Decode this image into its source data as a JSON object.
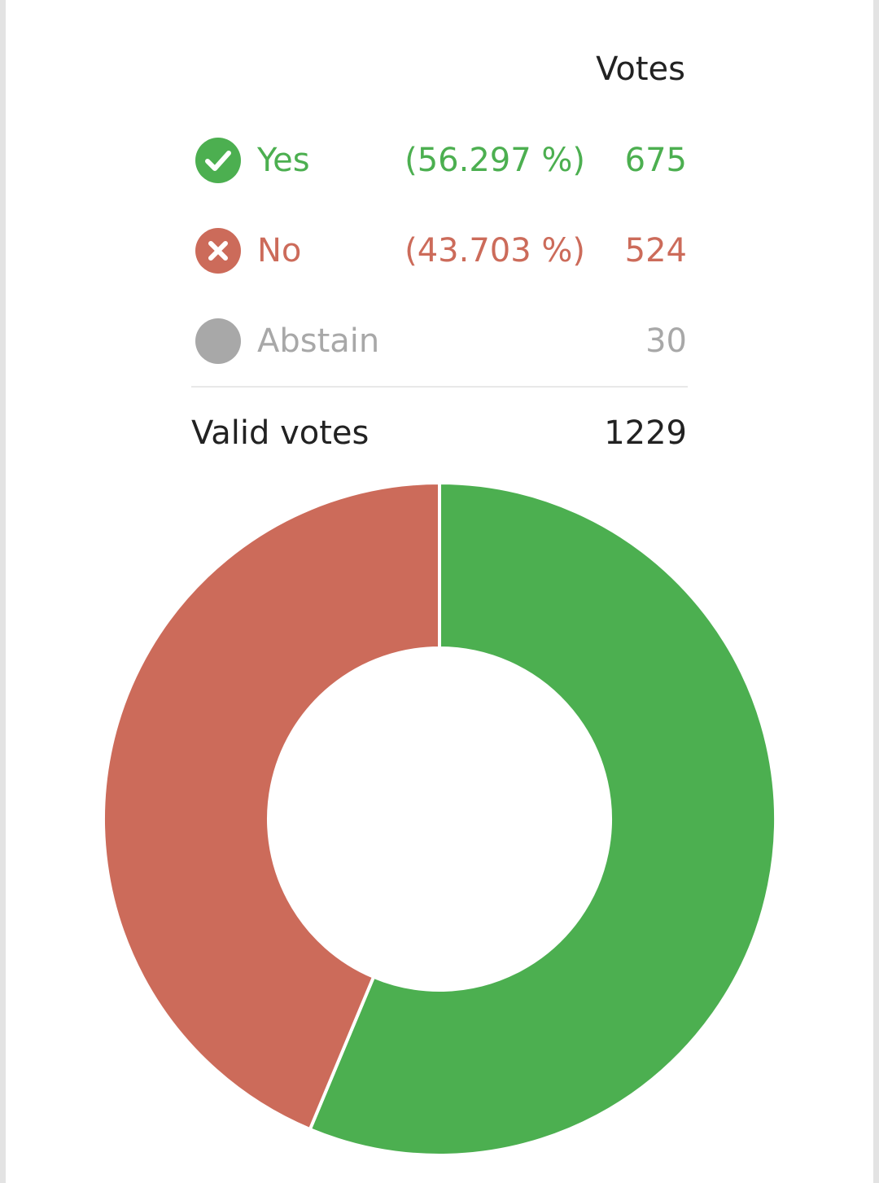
{
  "header": {
    "votes_label": "Votes"
  },
  "rows": [
    {
      "label": "Yes",
      "percent": "(56.297 %)",
      "count": "675",
      "color": "#4caf50",
      "icon": "check-icon"
    },
    {
      "label": "No",
      "percent": "(43.703 %)",
      "count": "524",
      "color": "#cc6b5a",
      "icon": "close-icon"
    },
    {
      "label": "Abstain",
      "percent": "",
      "count": "30",
      "color": "#a8a8a8",
      "icon": "circle-icon"
    }
  ],
  "summary": {
    "valid_label": "Valid votes",
    "valid_count": "1229"
  },
  "chart_data": {
    "type": "pie",
    "style": "donut",
    "slices": [
      {
        "label": "Yes",
        "value": 675,
        "color": "#4caf50"
      },
      {
        "label": "No",
        "value": 524,
        "color": "#cc6b5a"
      }
    ]
  }
}
